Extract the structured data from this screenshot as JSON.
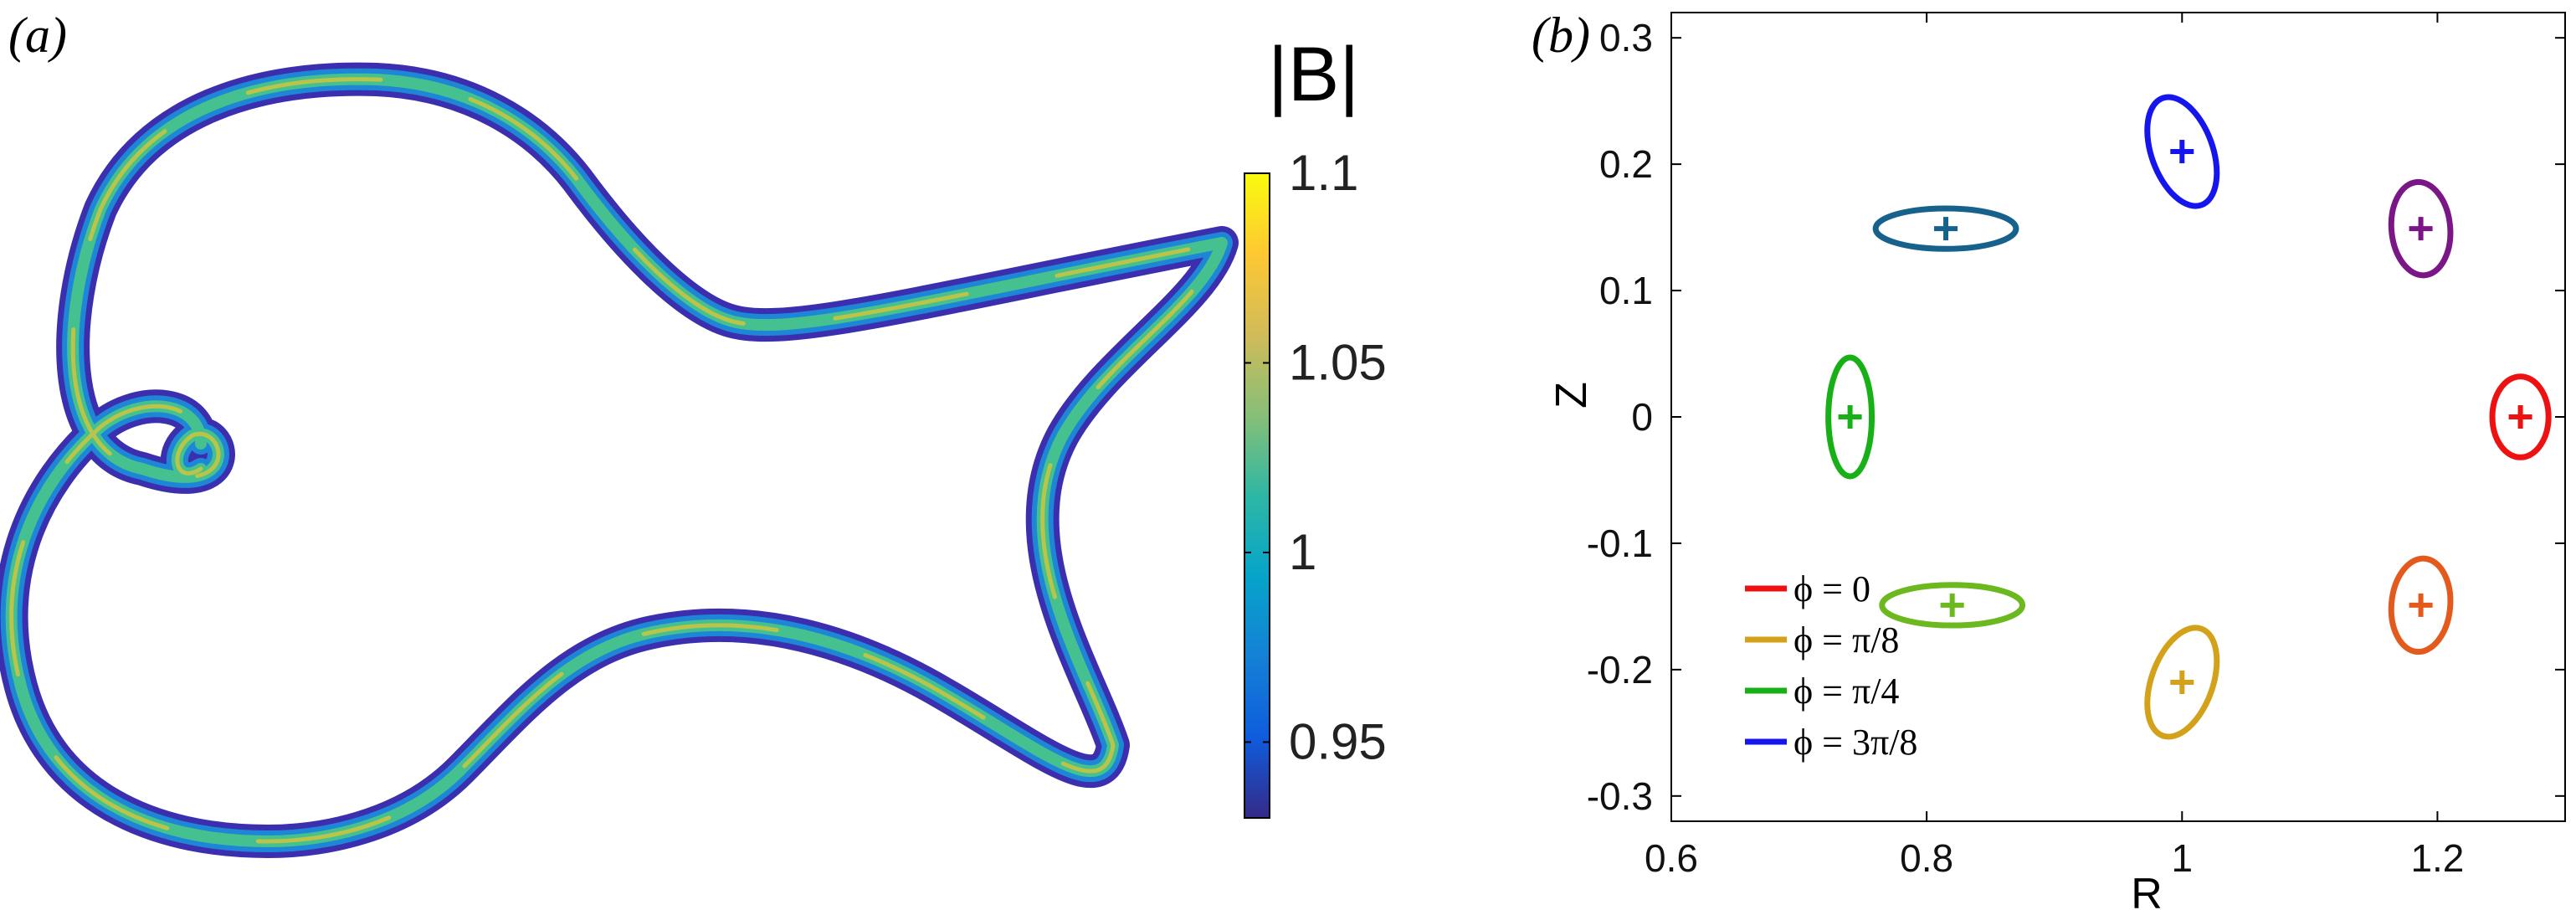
{
  "panels": {
    "a_label": "(a)",
    "b_label": "(b)"
  },
  "colorbar": {
    "title": "|B|",
    "min": 0.93,
    "max": 1.1,
    "ticks": [
      {
        "value": 1.1,
        "label": "1.1"
      },
      {
        "value": 1.05,
        "label": "1.05"
      },
      {
        "value": 1.0,
        "label": "1"
      },
      {
        "value": 0.95,
        "label": "0.95"
      }
    ],
    "colormap": [
      "#352a87",
      "#0f5cdd",
      "#1481d6",
      "#06a4ca",
      "#2eb7a4",
      "#87bf77",
      "#d1bb59",
      "#fec832",
      "#f9fb0e"
    ]
  },
  "chart_data": {
    "type": "scatter",
    "xlabel": "R",
    "ylabel": "Z",
    "xlim": [
      0.6,
      1.3
    ],
    "ylim": [
      -0.32,
      0.32
    ],
    "xticks": [
      0.6,
      0.8,
      1.0,
      1.2
    ],
    "xtick_labels": [
      "0.6",
      "0.8",
      "1",
      "1.2"
    ],
    "yticks": [
      0.3,
      0.2,
      0.1,
      0,
      -0.1,
      -0.2,
      -0.3
    ],
    "ytick_labels": [
      "0.3",
      "0.2",
      "0.1",
      "0",
      "-0.1",
      "-0.2",
      "-0.3"
    ],
    "grid": false,
    "legend_position": "bottom-left",
    "legend": [
      {
        "label": "ϕ = 0",
        "color": "#ee1111"
      },
      {
        "label": "ϕ = π/8",
        "color": "#d4a21a"
      },
      {
        "label": "ϕ = π/4",
        "color": "#17b017"
      },
      {
        "label": "ϕ = 3π/8",
        "color": "#1515ee"
      }
    ],
    "series": [
      {
        "center": [
          1.265,
          0.0
        ],
        "color": "#ee1111",
        "semi_axes": [
          0.022,
          0.032
        ],
        "tilt_deg": 0
      },
      {
        "center": [
          1.187,
          -0.149
        ],
        "color": "#e35a1c",
        "semi_axes": [
          0.023,
          0.037
        ],
        "tilt_deg": 5
      },
      {
        "center": [
          1.0,
          -0.21
        ],
        "color": "#d4a21a",
        "semi_axes": [
          0.024,
          0.045
        ],
        "tilt_deg": 20
      },
      {
        "center": [
          0.82,
          -0.149
        ],
        "color": "#6cb81f",
        "semi_axes": [
          0.055,
          0.016
        ],
        "tilt_deg": 0
      },
      {
        "center": [
          0.74,
          0.0
        ],
        "color": "#17b017",
        "semi_axes": [
          0.017,
          0.047
        ],
        "tilt_deg": 0
      },
      {
        "center": [
          0.815,
          0.149
        ],
        "color": "#17628c",
        "semi_axes": [
          0.055,
          0.016
        ],
        "tilt_deg": 0
      },
      {
        "center": [
          1.0,
          0.21
        ],
        "color": "#1515ee",
        "semi_axes": [
          0.024,
          0.045
        ],
        "tilt_deg": -20
      },
      {
        "center": [
          1.187,
          0.149
        ],
        "color": "#7b1686",
        "semi_axes": [
          0.023,
          0.037
        ],
        "tilt_deg": -5
      }
    ]
  }
}
